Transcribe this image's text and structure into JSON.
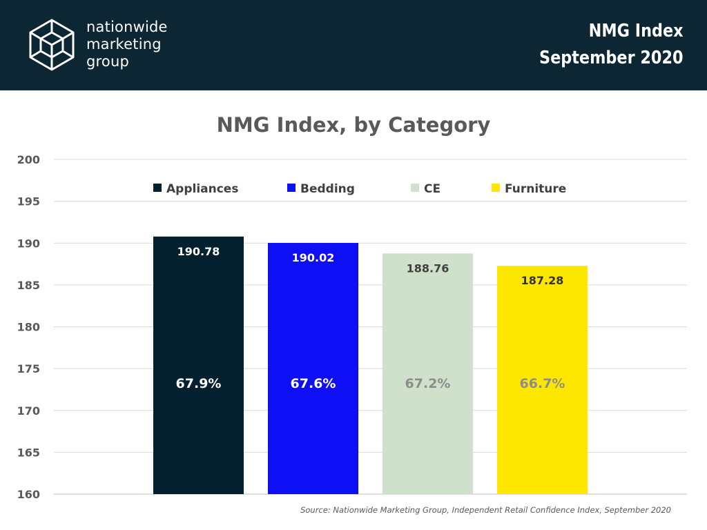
{
  "header": {
    "logo_lines": [
      "nationwide",
      "marketing",
      "group"
    ],
    "title_line1": "NMG Index",
    "title_line2": "September 2020",
    "background": "#0c2633"
  },
  "chart_data": {
    "type": "bar",
    "title": "NMG Index, by Category",
    "xlabel": "",
    "ylabel": "",
    "ylim": [
      160,
      200
    ],
    "yticks": [
      160,
      165,
      170,
      175,
      180,
      185,
      190,
      195,
      200
    ],
    "grid": true,
    "legend_position": "top",
    "categories": [
      "Appliances",
      "Bedding",
      "CE",
      "Furniture"
    ],
    "series": [
      {
        "name": "Appliances",
        "values": [
          190.78,
          null,
          null,
          null
        ],
        "percent": "67.9%",
        "color": "#03202e",
        "label_color": "#ffffff"
      },
      {
        "name": "Bedding",
        "values": [
          null,
          190.02,
          null,
          null
        ],
        "percent": "67.6%",
        "color": "#0f0ff5",
        "label_color": "#ffffff"
      },
      {
        "name": "CE",
        "values": [
          null,
          null,
          188.76,
          null
        ],
        "percent": "67.2%",
        "color": "#cfe0cb",
        "label_color": "#404040",
        "percent_color": "#8c8c8c"
      },
      {
        "name": "Furniture",
        "values": [
          null,
          null,
          null,
          187.28
        ],
        "percent": "66.7%",
        "color": "#fde600",
        "label_color": "#333333",
        "percent_color": "#8c8c8c"
      }
    ],
    "value_labels": [
      "190.78",
      "190.02",
      "188.76",
      "187.28"
    ]
  },
  "source": "Source: Nationwide Marketing Group, Independent Retail Confidence Index, September 2020"
}
